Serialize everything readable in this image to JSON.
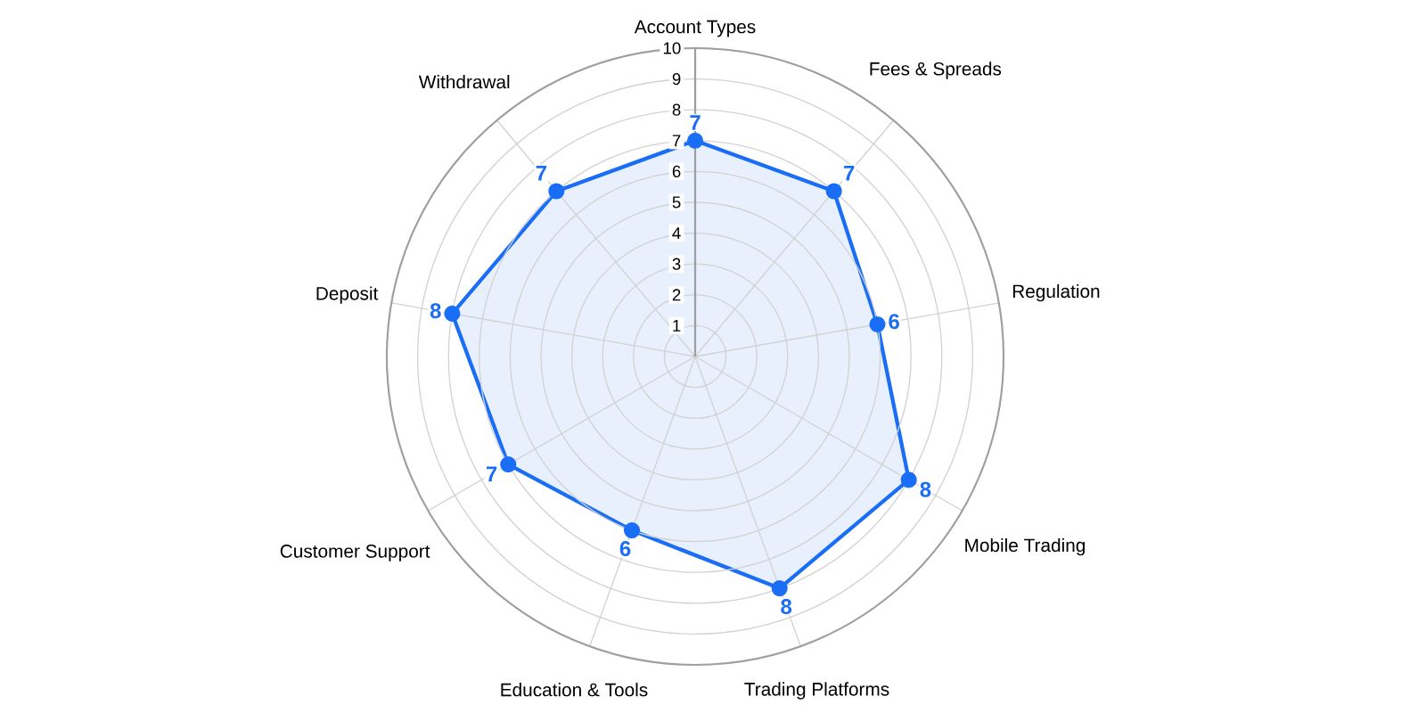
{
  "chart_data": {
    "type": "radar",
    "categories": [
      "Account Types",
      "Fees & Spreads",
      "Regulation",
      "Mobile Trading",
      "Trading Platforms",
      "Education & Tools",
      "Customer Support",
      "Deposit",
      "Withdrawal"
    ],
    "series": [
      {
        "color": "#1a6ef5",
        "values": [
          7,
          7,
          6,
          8,
          8,
          6,
          7,
          8,
          7
        ]
      }
    ],
    "ylim": [
      0,
      10
    ],
    "yticks": [
      1,
      2,
      3,
      4,
      5,
      6,
      7,
      8,
      9,
      10
    ],
    "data_labels": true,
    "marker": "circle",
    "grid": true
  }
}
